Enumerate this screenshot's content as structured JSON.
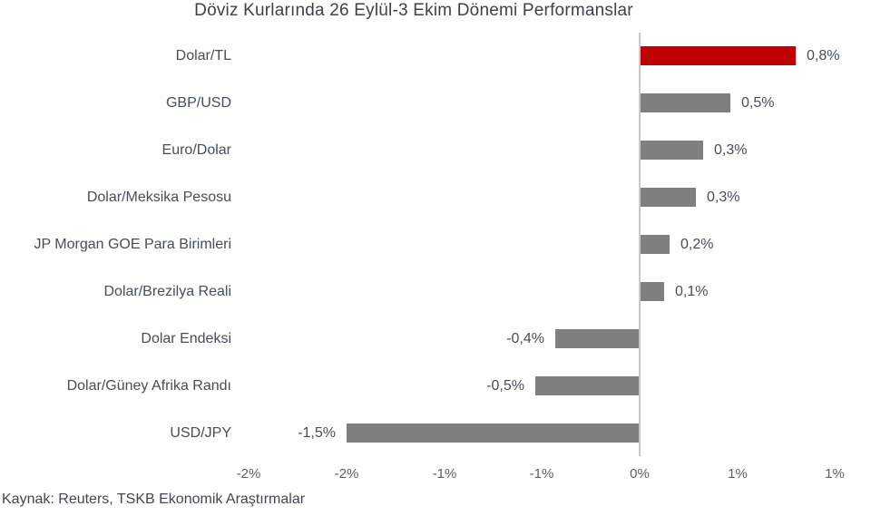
{
  "title": "Döviz Kurlarında 26 Eylül-3 Ekim Dönemi Performanslar",
  "source": "Kaynak: Reuters, TSKB Ekonomik Araştırmalar",
  "chart_data": {
    "type": "bar",
    "orientation": "horizontal",
    "title": "Döviz Kurlarında 26 Eylül-3 Ekim Dönemi Performanslar",
    "xlabel": "",
    "ylabel": "",
    "grid": false,
    "legend": false,
    "xlim": [
      -2,
      1
    ],
    "x_tick_values": [
      -2,
      -1.5,
      -1,
      -0.5,
      0,
      0.5,
      1
    ],
    "x_tick_labels": [
      "-2%",
      "-2%",
      "-1%",
      "-1%",
      "0%",
      "1%",
      "1%"
    ],
    "categories": [
      "Dolar/TL",
      "GBP/USD",
      "Euro/Dolar",
      "Dolar/Meksika Pesosu",
      "JP Morgan GOE Para Birimleri",
      "Dolar/Brezilya Reali",
      "Dolar Endeksi",
      "Dolar/Güney Afrika Randı",
      "USD/JPY"
    ],
    "values": [
      0.8,
      0.5,
      0.3,
      0.3,
      0.2,
      0.1,
      -0.4,
      -0.5,
      -1.5
    ],
    "value_labels": [
      "0,8%",
      "0,5%",
      "0,3%",
      "0,3%",
      "0,2%",
      "0,1%",
      "-0,4%",
      "-0,5%",
      "-1,5%"
    ],
    "bar_lengths_pct": [
      0.8,
      0.465,
      0.325,
      0.29,
      0.155,
      0.125,
      -0.43,
      -0.535,
      -1.5
    ],
    "bar_colors": [
      "#C00000",
      "#7F7F7F",
      "#7F7F7F",
      "#7F7F7F",
      "#7F7F7F",
      "#7F7F7F",
      "#7F7F7F",
      "#7F7F7F",
      "#7F7F7F"
    ],
    "highlight_color": "#C00000",
    "default_bar_color": "#7F7F7F",
    "zero_line_color": "#C9C9C9",
    "source": "Kaynak: Reuters, TSKB Ekonomik Araştırmalar"
  }
}
